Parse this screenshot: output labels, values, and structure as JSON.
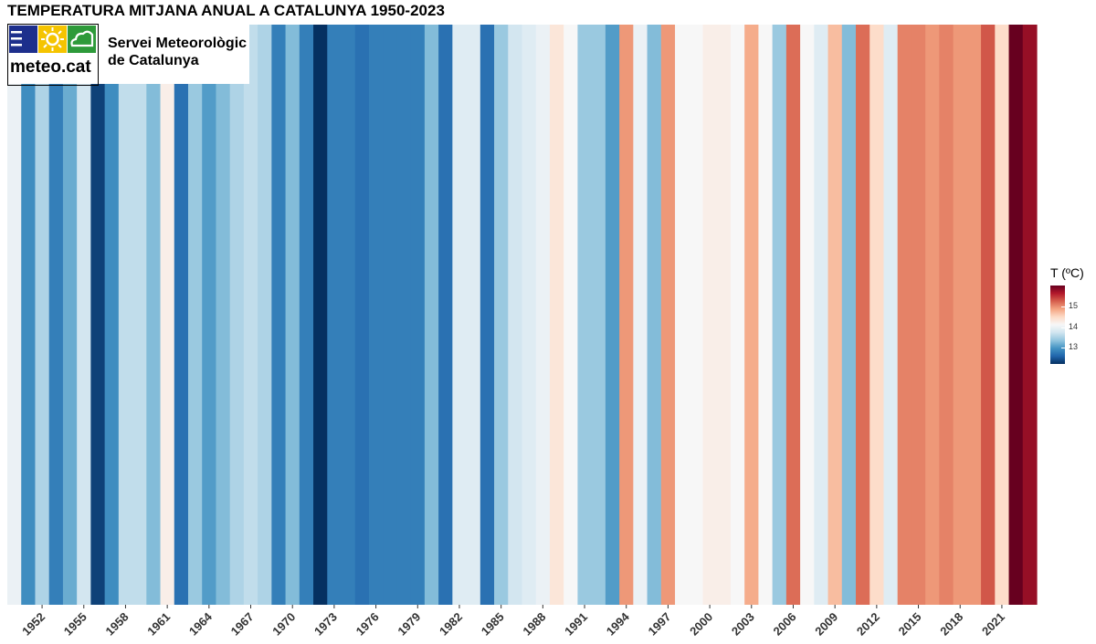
{
  "title": "TEMPERATURA MITJANA ANUAL A CATALUNYA 1950-2023",
  "logo": {
    "wordmark": "meteo.cat",
    "name_line1": "Servei Meteorològic",
    "name_line2": "de Catalunya"
  },
  "legend": {
    "title": "T (ºC)",
    "ticks": [
      "15",
      "14",
      "13"
    ]
  },
  "colors": {
    "logo_blue": "#1d2f8c",
    "logo_yellow": "#f5c400",
    "logo_green": "#2e9a3a"
  },
  "chart_data": {
    "type": "heatmap",
    "title": "TEMPERATURA MITJANA ANUAL A CATALUNYA 1950-2023",
    "xlabel": "",
    "ylabel": "",
    "legend_title": "T (ºC)",
    "color_scale": [
      "#053061",
      "#2166ac",
      "#4393c3",
      "#92c5de",
      "#d1e5f0",
      "#f7f7f7",
      "#fddbc7",
      "#f4a582",
      "#d6604d",
      "#b2182b",
      "#67001f"
    ],
    "color_range": [
      12.4,
      15.6
    ],
    "x": [
      1950,
      1951,
      1952,
      1953,
      1954,
      1955,
      1956,
      1957,
      1958,
      1959,
      1960,
      1961,
      1962,
      1963,
      1964,
      1965,
      1966,
      1967,
      1968,
      1969,
      1970,
      1971,
      1972,
      1973,
      1974,
      1975,
      1976,
      1977,
      1978,
      1979,
      1980,
      1981,
      1982,
      1983,
      1984,
      1985,
      1986,
      1987,
      1988,
      1989,
      1990,
      1991,
      1992,
      1993,
      1994,
      1995,
      1996,
      1997,
      1998,
      1999,
      2000,
      2001,
      2002,
      2003,
      2004,
      2005,
      2006,
      2007,
      2008,
      2009,
      2010,
      2011,
      2012,
      2013,
      2014,
      2015,
      2016,
      2017,
      2018,
      2019,
      2020,
      2021,
      2022,
      2023
    ],
    "values": [
      13.9,
      13.0,
      13.5,
      12.9,
      13.2,
      13.7,
      12.5,
      13.0,
      13.6,
      13.6,
      13.3,
      14.1,
      12.8,
      13.4,
      13.1,
      13.3,
      13.5,
      13.6,
      13.5,
      12.9,
      13.3,
      12.9,
      12.4,
      12.9,
      12.9,
      12.8,
      12.9,
      12.9,
      12.9,
      12.9,
      13.3,
      12.8,
      13.8,
      13.8,
      12.8,
      13.4,
      13.7,
      13.8,
      13.9,
      14.2,
      14.0,
      13.4,
      13.4,
      13.1,
      14.7,
      13.9,
      13.3,
      14.7,
      14.0,
      14.0,
      14.1,
      14.1,
      14.0,
      14.6,
      14.0,
      13.4,
      14.9,
      14.0,
      13.8,
      14.5,
      13.3,
      14.9,
      14.3,
      13.8,
      14.8,
      14.8,
      14.7,
      14.8,
      14.7,
      14.7,
      15.0,
      14.3,
      15.6,
      15.4
    ],
    "x_tick_labels": [
      "1952",
      "1955",
      "1958",
      "1961",
      "1964",
      "1967",
      "1970",
      "1973",
      "1976",
      "1979",
      "1982",
      "1985",
      "1988",
      "1991",
      "1994",
      "1997",
      "2000",
      "2003",
      "2006",
      "2009",
      "2012",
      "2015",
      "2018",
      "2021"
    ],
    "legend_ticks": [
      15,
      14,
      13
    ]
  }
}
